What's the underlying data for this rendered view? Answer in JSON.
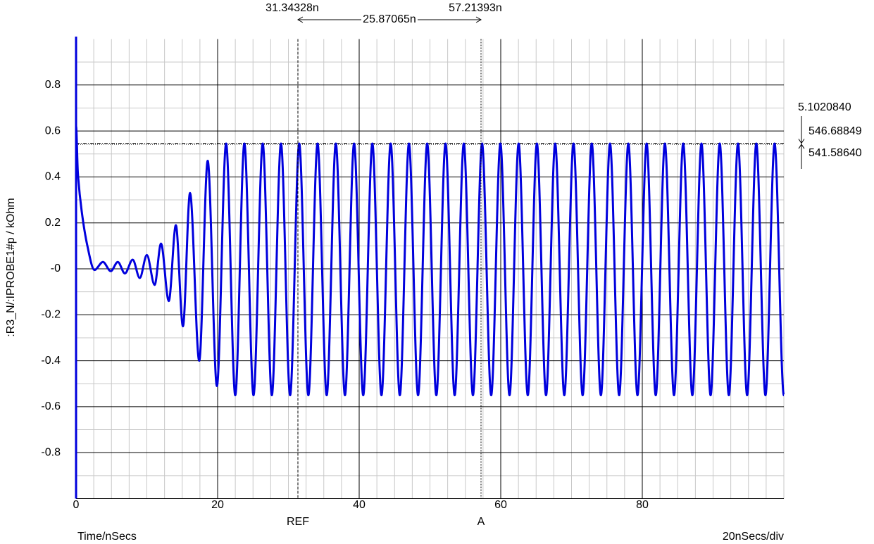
{
  "chart_data": {
    "type": "line",
    "ylabel": ":R3_N/:IPROBE1#p / kOhm",
    "xlabel": "Time/nSecs",
    "xscale_label": "20nSecs/div",
    "xlim": [
      0,
      100
    ],
    "ylim": [
      -1,
      1
    ],
    "xticks": [
      0,
      20,
      40,
      60,
      80
    ],
    "yticks": [
      0.8,
      0.6,
      0.4,
      0.2,
      {
        "value": 0,
        "label": "-0"
      },
      -0.2,
      -0.4,
      -0.6,
      -0.8
    ],
    "xminorticks": [
      2.5,
      5,
      7.5,
      10,
      12.5,
      15,
      17.5,
      22.5,
      25,
      27.5,
      30,
      32.5,
      35,
      37.5,
      42.5,
      45,
      47.5,
      50,
      52.5,
      55,
      57.5,
      62.5,
      65,
      67.5,
      70,
      72.5,
      75,
      77.5,
      82.5,
      85,
      87.5,
      90,
      92.5,
      95,
      97.5,
      100
    ],
    "yminorticks": [
      0.9,
      0.7,
      0.5,
      0.3,
      0.1,
      -0.1,
      -0.3,
      -0.5,
      -0.7,
      -0.9
    ],
    "grid": true,
    "series": [
      {
        "color": "#0000dd",
        "x": [
          0,
          0.25,
          0.8,
          1.6,
          2.6,
          3.8,
          4.9,
          5.9,
          6.9,
          8.0,
          9.0,
          10.0,
          11.1,
          12.0,
          13.1,
          14.1,
          15.1,
          16.1,
          17.4,
          18.6,
          19.9,
          21.2,
          22.49,
          23.78,
          25.07,
          26.37,
          27.66,
          28.95,
          30.24,
          31.53,
          32.82,
          34.12,
          35.41,
          36.7,
          37.99,
          39.28,
          40.57,
          41.86,
          43.15,
          44.45,
          45.74,
          47.03,
          48.32,
          49.61,
          50.9,
          52.2,
          53.49,
          54.78,
          56.07,
          57.36,
          58.65,
          59.95,
          61.24,
          62.53,
          63.82,
          65.11,
          66.4,
          67.69,
          68.98,
          70.28,
          71.57,
          72.86,
          74.15,
          75.44,
          76.73,
          78.03,
          79.32,
          80.61,
          81.9,
          83.19,
          84.48,
          85.78,
          87.07,
          88.36,
          89.65,
          90.94,
          92.23,
          93.52,
          94.81,
          96.11,
          97.4,
          98.69,
          100
        ],
        "values": [
          0.62,
          0.42,
          0.25,
          0.1,
          -0.005,
          0.03,
          -0.01,
          0.03,
          -0.02,
          0.04,
          -0.04,
          0.06,
          -0.07,
          0.11,
          -0.14,
          0.19,
          -0.25,
          0.33,
          -0.4,
          0.47,
          -0.51,
          0.545,
          -0.55,
          0.545,
          -0.55,
          0.545,
          -0.55,
          0.545,
          -0.55,
          0.545,
          -0.55,
          0.545,
          -0.55,
          0.545,
          -0.55,
          0.545,
          -0.55,
          0.545,
          -0.55,
          0.545,
          -0.55,
          0.545,
          -0.55,
          0.545,
          -0.55,
          0.545,
          -0.55,
          0.545,
          -0.55,
          0.545,
          -0.55,
          0.545,
          -0.55,
          0.545,
          -0.55,
          0.545,
          -0.55,
          0.545,
          -0.55,
          0.545,
          -0.55,
          0.545,
          -0.55,
          0.545,
          -0.55,
          0.545,
          -0.55,
          0.545,
          -0.55,
          0.545,
          -0.55,
          0.545,
          -0.55,
          0.545,
          -0.55,
          0.545,
          -0.55,
          0.545,
          -0.55,
          0.545,
          -0.55,
          0.545,
          -0.55
        ]
      }
    ],
    "cursors": [
      {
        "name": "REF",
        "x": {
          "value": 31.34328,
          "label": "31.34328n"
        }
      },
      {
        "name": "A",
        "x": {
          "value": 57.21393,
          "label": "57.21393n"
        }
      }
    ],
    "cursor_dx": "25.87065n",
    "cursor_levels": [
      {
        "value": 0.54668849,
        "label": "546.68849"
      },
      {
        "value": 0.5415864,
        "label": "541.58640"
      }
    ],
    "cursor_dy": "5.1020840"
  }
}
